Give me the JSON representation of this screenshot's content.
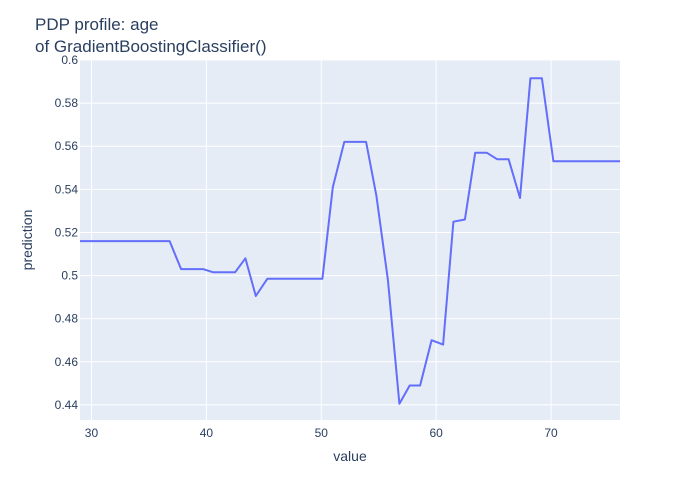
{
  "chart_data": {
    "type": "line",
    "title_line1": "PDP profile: age",
    "title_line2": "of GradientBoostingClassifier()",
    "xlabel": "value",
    "ylabel": "prediction",
    "xlim": [
      29,
      76
    ],
    "ylim": [
      0.433,
      0.6
    ],
    "grid": true,
    "x_ticks": [
      {
        "value": 30,
        "label": "30"
      },
      {
        "value": 40,
        "label": "40"
      },
      {
        "value": 50,
        "label": "50"
      },
      {
        "value": 60,
        "label": "60"
      },
      {
        "value": 70,
        "label": "70"
      }
    ],
    "y_ticks": [
      {
        "value": 0.44,
        "label": "0.44"
      },
      {
        "value": 0.46,
        "label": "0.46"
      },
      {
        "value": 0.48,
        "label": "0.48"
      },
      {
        "value": 0.5,
        "label": "0.5"
      },
      {
        "value": 0.52,
        "label": "0.52"
      },
      {
        "value": 0.54,
        "label": "0.54"
      },
      {
        "value": 0.56,
        "label": "0.56"
      },
      {
        "value": 0.58,
        "label": "0.58"
      },
      {
        "value": 0.6,
        "label": "0.6"
      }
    ],
    "series": [
      {
        "color": "#636efa",
        "x": [
          29,
          36.8,
          37.8,
          39.7,
          40.6,
          42.5,
          43.4,
          44.3,
          45.3,
          50.1,
          51.0,
          52.0,
          53.9,
          54.8,
          55.8,
          56.8,
          57.7,
          58.6,
          59.6,
          60.6,
          61.5,
          62.5,
          63.4,
          64.4,
          65.3,
          66.3,
          67.3,
          68.2,
          69.2,
          70.2,
          76
        ],
        "y": [
          0.516,
          0.516,
          0.503,
          0.503,
          0.5015,
          0.5015,
          0.508,
          0.4905,
          0.4985,
          0.4985,
          0.541,
          0.562,
          0.562,
          0.537,
          0.498,
          0.4405,
          0.449,
          0.449,
          0.47,
          0.468,
          0.525,
          0.526,
          0.557,
          0.557,
          0.554,
          0.554,
          0.536,
          0.5915,
          0.5915,
          0.553,
          0.553
        ]
      }
    ]
  }
}
